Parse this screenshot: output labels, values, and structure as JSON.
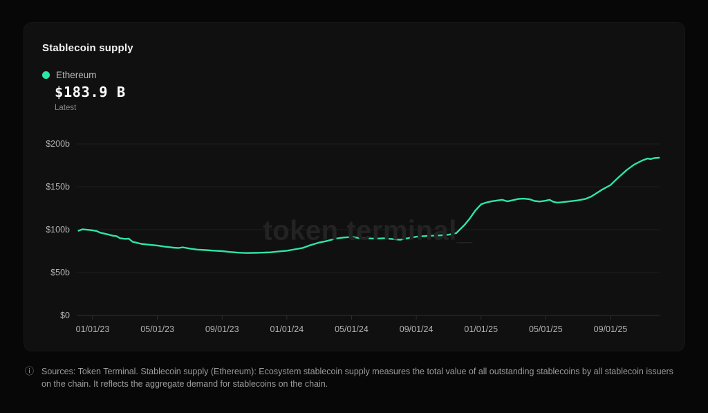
{
  "page": {
    "background": "#070707"
  },
  "card": {
    "title": "Stablecoin supply",
    "legend": {
      "label": "Ethereum",
      "dot_color": "#2ee6a4"
    },
    "kpi": {
      "value": "$183.9 B",
      "caption": "Latest"
    },
    "watermark": "token terminal_"
  },
  "footer": {
    "text": "Sources: Token Terminal. Stablecoin supply (Ethereum): Ecosystem stablecoin supply measures the total value of all outstanding stablecoins by all stablecoin issuers on the chain. It reflects the aggregate demand for stablecoins on the chain."
  },
  "chart_data": {
    "type": "line",
    "title": "Stablecoin supply",
    "unit": "USD billions",
    "ylim": [
      0,
      200
    ],
    "grid": "horizontal",
    "legend_position": "top-left",
    "grid_color": "#1e1e1e",
    "axis_color": "#2f2f2f",
    "tick_label_color": "#b3b3b3",
    "y_ticks": [
      {
        "value": 0,
        "label": "$0"
      },
      {
        "value": 50,
        "label": "$50b"
      },
      {
        "value": 100,
        "label": "$100b"
      },
      {
        "value": 150,
        "label": "$150b"
      },
      {
        "value": 200,
        "label": "$200b"
      }
    ],
    "x_ticks": [
      {
        "date": "2023-01-01",
        "label": "01/01/23"
      },
      {
        "date": "2023-05-01",
        "label": "05/01/23"
      },
      {
        "date": "2023-09-01",
        "label": "09/01/23"
      },
      {
        "date": "2024-01-01",
        "label": "01/01/24"
      },
      {
        "date": "2024-05-01",
        "label": "05/01/24"
      },
      {
        "date": "2024-09-01",
        "label": "09/01/24"
      },
      {
        "date": "2025-01-01",
        "label": "01/01/25"
      },
      {
        "date": "2025-05-01",
        "label": "05/01/25"
      },
      {
        "date": "2025-09-01",
        "label": "09/01/25"
      }
    ],
    "series": [
      {
        "name": "Ethereum",
        "color": "#2ee6a4",
        "latest_label": "$183.9 B",
        "points": [
          [
            "2022-12-05",
            98.8
          ],
          [
            "2022-12-12",
            100.4
          ],
          [
            "2022-12-22",
            99.8
          ],
          [
            "2023-01-01",
            99.2
          ],
          [
            "2023-01-08",
            98.5
          ],
          [
            "2023-01-15",
            96.5
          ],
          [
            "2023-01-22",
            95.5
          ],
          [
            "2023-02-01",
            94.2
          ],
          [
            "2023-02-08",
            93.0
          ],
          [
            "2023-02-15",
            92.5
          ],
          [
            "2023-02-22",
            90.0
          ],
          [
            "2023-03-01",
            89.3
          ],
          [
            "2023-03-08",
            89.5
          ],
          [
            "2023-03-15",
            86.0
          ],
          [
            "2023-03-22",
            84.8
          ],
          [
            "2023-04-01",
            83.5
          ],
          [
            "2023-04-15",
            82.5
          ],
          [
            "2023-05-01",
            81.5
          ],
          [
            "2023-05-15",
            80.2
          ],
          [
            "2023-06-01",
            79.0
          ],
          [
            "2023-06-10",
            78.6
          ],
          [
            "2023-06-18",
            79.4
          ],
          [
            "2023-07-01",
            78.0
          ],
          [
            "2023-07-15",
            76.8
          ],
          [
            "2023-08-01",
            76.2
          ],
          [
            "2023-08-15",
            75.6
          ],
          [
            "2023-09-01",
            75.0
          ],
          [
            "2023-09-15",
            74.0
          ],
          [
            "2023-10-01",
            73.2
          ],
          [
            "2023-10-15",
            72.8
          ],
          [
            "2023-11-01",
            73.0
          ],
          [
            "2023-11-15",
            73.2
          ],
          [
            "2023-12-01",
            73.6
          ],
          [
            "2023-12-15",
            74.5
          ],
          [
            "2024-01-01",
            75.5
          ],
          [
            "2024-01-15",
            77.0
          ],
          [
            "2024-02-01",
            78.8
          ],
          [
            "2024-02-15",
            82.0
          ],
          [
            "2024-03-01",
            85.0
          ],
          [
            "2024-03-15",
            86.8
          ],
          [
            "2024-04-01",
            89.5
          ],
          [
            "2024-04-15",
            90.8
          ],
          [
            "2024-05-01",
            91.5
          ],
          [
            "2024-05-15",
            90.3
          ],
          [
            "2024-06-01",
            89.8
          ],
          [
            "2024-06-15",
            89.4
          ],
          [
            "2024-07-01",
            90.0
          ],
          [
            "2024-07-15",
            89.2
          ],
          [
            "2024-08-01",
            88.2
          ],
          [
            "2024-08-15",
            90.0
          ],
          [
            "2024-09-01",
            91.8
          ],
          [
            "2024-09-15",
            92.5
          ],
          [
            "2024-10-01",
            93.0
          ],
          [
            "2024-10-15",
            93.3
          ],
          [
            "2024-11-01",
            94.2
          ],
          [
            "2024-11-15",
            96.0
          ],
          [
            "2024-12-01",
            106.0
          ],
          [
            "2024-12-10",
            113.0
          ],
          [
            "2024-12-20",
            122.0
          ],
          [
            "2025-01-01",
            129.5
          ],
          [
            "2025-01-10",
            131.5
          ],
          [
            "2025-01-20",
            133.0
          ],
          [
            "2025-02-01",
            134.0
          ],
          [
            "2025-02-10",
            134.8
          ],
          [
            "2025-02-20",
            133.0
          ],
          [
            "2025-03-01",
            134.5
          ],
          [
            "2025-03-10",
            135.8
          ],
          [
            "2025-03-20",
            136.2
          ],
          [
            "2025-04-01",
            135.5
          ],
          [
            "2025-04-10",
            133.5
          ],
          [
            "2025-04-20",
            132.8
          ],
          [
            "2025-05-01",
            133.8
          ],
          [
            "2025-05-08",
            134.8
          ],
          [
            "2025-05-15",
            132.5
          ],
          [
            "2025-05-22",
            131.5
          ],
          [
            "2025-06-01",
            132.0
          ],
          [
            "2025-06-15",
            133.0
          ],
          [
            "2025-07-01",
            134.2
          ],
          [
            "2025-07-15",
            136.0
          ],
          [
            "2025-07-25",
            138.5
          ],
          [
            "2025-08-01",
            141.0
          ],
          [
            "2025-08-15",
            146.5
          ],
          [
            "2025-09-01",
            152.0
          ],
          [
            "2025-09-15",
            160.5
          ],
          [
            "2025-10-01",
            169.5
          ],
          [
            "2025-10-15",
            176.0
          ],
          [
            "2025-11-01",
            181.0
          ],
          [
            "2025-11-10",
            183.0
          ],
          [
            "2025-11-15",
            182.3
          ],
          [
            "2025-11-22",
            183.5
          ],
          [
            "2025-12-01",
            183.9
          ]
        ]
      }
    ]
  }
}
